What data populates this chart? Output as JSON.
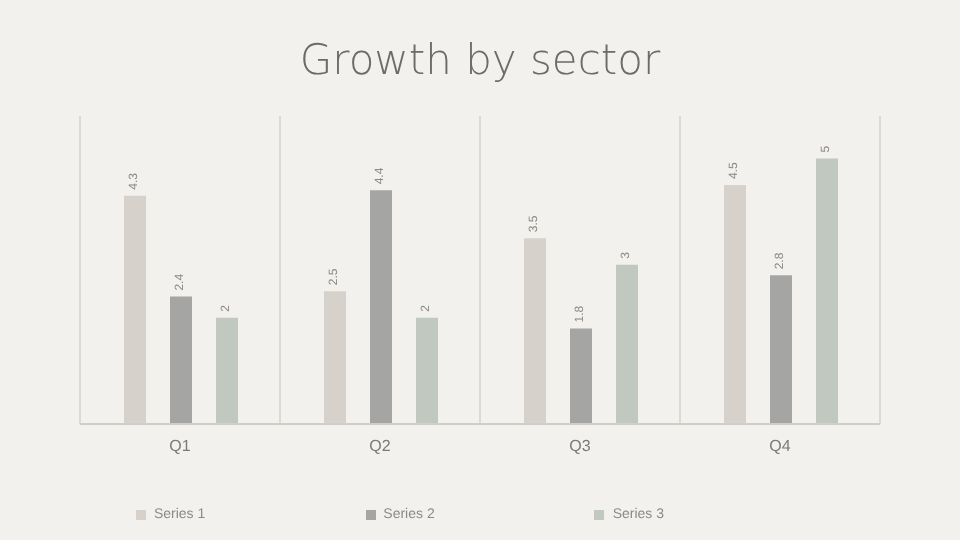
{
  "chart_data": {
    "type": "bar",
    "title": "Growth by sector",
    "categories": [
      "Q1",
      "Q2",
      "Q3",
      "Q4"
    ],
    "series": [
      {
        "name": "Series 1",
        "color": "#d6d2cb",
        "values": [
          4.3,
          2.5,
          3.5,
          4.5
        ]
      },
      {
        "name": "Series 2",
        "color": "#a5a5a3",
        "values": [
          2.4,
          4.4,
          1.8,
          2.8
        ]
      },
      {
        "name": "Series 3",
        "color": "#c1c8c0",
        "values": [
          2,
          2,
          3,
          5
        ]
      }
    ],
    "ylim": [
      0,
      5.8
    ],
    "tick_labels": "x",
    "grid": "x",
    "legend": "bottom",
    "data_labels": true
  }
}
